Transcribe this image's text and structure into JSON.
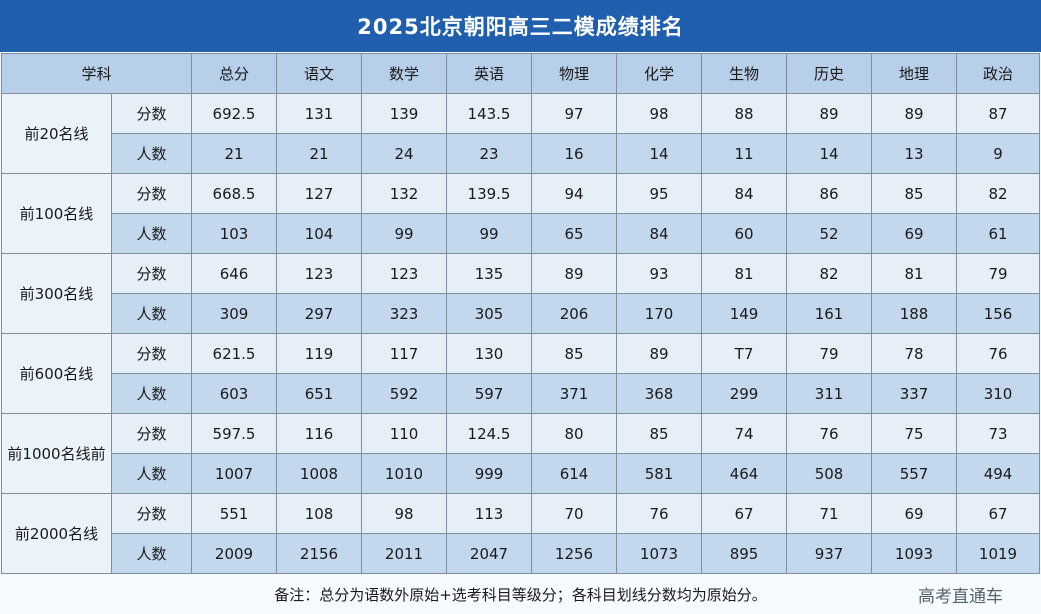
{
  "title": "2025北京朝阳高三二模成绩排名",
  "header": {
    "subject": "学科",
    "columns": [
      "总分",
      "语文",
      "数学",
      "英语",
      "物理",
      "化学",
      "生物",
      "历史",
      "地理",
      "政治"
    ]
  },
  "groups": [
    {
      "label": "前20名线",
      "rows": [
        {
          "type": "分数",
          "values": [
            "692.5",
            "131",
            "139",
            "143.5",
            "97",
            "98",
            "88",
            "89",
            "89",
            "87"
          ]
        },
        {
          "type": "人数",
          "values": [
            "21",
            "21",
            "24",
            "23",
            "16",
            "14",
            "11",
            "14",
            "13",
            "9"
          ]
        }
      ]
    },
    {
      "label": "前100名线",
      "rows": [
        {
          "type": "分数",
          "values": [
            "668.5",
            "127",
            "132",
            "139.5",
            "94",
            "95",
            "84",
            "86",
            "85",
            "82"
          ]
        },
        {
          "type": "人数",
          "values": [
            "103",
            "104",
            "99",
            "99",
            "65",
            "84",
            "60",
            "52",
            "69",
            "61"
          ]
        }
      ]
    },
    {
      "label": "前300名线",
      "rows": [
        {
          "type": "分数",
          "values": [
            "646",
            "123",
            "123",
            "135",
            "89",
            "93",
            "81",
            "82",
            "81",
            "79"
          ]
        },
        {
          "type": "人数",
          "values": [
            "309",
            "297",
            "323",
            "305",
            "206",
            "170",
            "149",
            "161",
            "188",
            "156"
          ]
        }
      ]
    },
    {
      "label": "前600名线",
      "rows": [
        {
          "type": "分数",
          "values": [
            "621.5",
            "119",
            "117",
            "130",
            "85",
            "89",
            "T7",
            "79",
            "78",
            "76"
          ]
        },
        {
          "type": "人数",
          "values": [
            "603",
            "651",
            "592",
            "597",
            "371",
            "368",
            "299",
            "311",
            "337",
            "310"
          ]
        }
      ]
    },
    {
      "label": "前1000名线前",
      "rows": [
        {
          "type": "分数",
          "values": [
            "597.5",
            "116",
            "110",
            "124.5",
            "80",
            "85",
            "74",
            "76",
            "75",
            "73"
          ]
        },
        {
          "type": "人数",
          "values": [
            "1007",
            "1008",
            "1010",
            "999",
            "614",
            "581",
            "464",
            "508",
            "557",
            "494"
          ]
        }
      ]
    },
    {
      "label": "前2000名线",
      "rows": [
        {
          "type": "分数",
          "values": [
            "551",
            "108",
            "98",
            "113",
            "70",
            "76",
            "67",
            "71",
            "69",
            "67"
          ]
        },
        {
          "type": "人数",
          "values": [
            "2009",
            "2156",
            "2011",
            "2047",
            "1256",
            "1073",
            "895",
            "937",
            "1093",
            "1019"
          ]
        }
      ]
    }
  ],
  "note": "备注：总分为语数外原始+选考科目等级分；各科目划线分数均为原始分。",
  "watermark": "高考直通车"
}
